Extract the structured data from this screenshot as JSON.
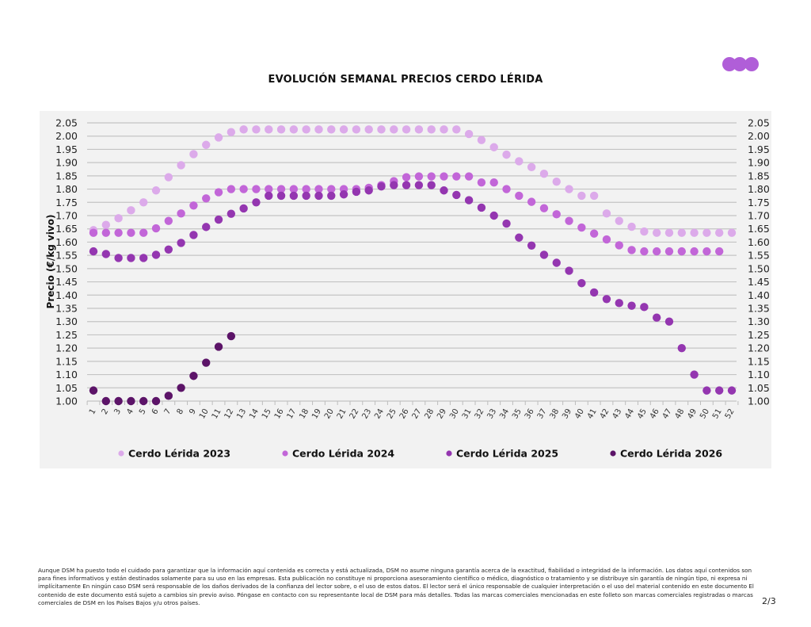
{
  "header": {
    "title": "EVOLUCIÓN SEMANAL PRECIOS CERDO LÉRIDA",
    "logo_icon": "three-dots-logo",
    "logo_color": "#b05ed8"
  },
  "chart_data": {
    "type": "scatter",
    "title": "EVOLUCIÓN SEMANAL PRECIOS CERDO LÉRIDA",
    "xlabel": "",
    "ylabel": "Precio (€/kg vivo)",
    "ylim": [
      1.0,
      2.05
    ],
    "yticks": [
      "1.00",
      "1.05",
      "1.10",
      "1.15",
      "1.20",
      "1.25",
      "1.30",
      "1.35",
      "1.40",
      "1.45",
      "1.50",
      "1.55",
      "1.60",
      "1.65",
      "1.70",
      "1.75",
      "1.80",
      "1.85",
      "1.90",
      "1.95",
      "2.00",
      "2.05"
    ],
    "secondary_y_axis": true,
    "grid": true,
    "legend_position": "bottom",
    "x": [
      1,
      2,
      3,
      4,
      5,
      6,
      7,
      8,
      9,
      10,
      11,
      12,
      13,
      14,
      15,
      16,
      17,
      18,
      19,
      20,
      21,
      22,
      23,
      24,
      25,
      26,
      27,
      28,
      29,
      30,
      31,
      32,
      33,
      34,
      35,
      36,
      37,
      38,
      39,
      40,
      41,
      42,
      43,
      44,
      45,
      46,
      47,
      48,
      49,
      50,
      51,
      52
    ],
    "series": [
      {
        "name": "Cerdo Lérida 2023",
        "color": "#dcaaea",
        "values": [
          1.645,
          1.665,
          1.69,
          1.72,
          1.75,
          1.795,
          1.845,
          1.89,
          1.932,
          1.967,
          1.995,
          2.015,
          2.025,
          2.025,
          2.025,
          2.025,
          2.025,
          2.025,
          2.025,
          2.025,
          2.025,
          2.025,
          2.025,
          2.025,
          2.025,
          2.025,
          2.025,
          2.025,
          2.025,
          2.025,
          2.008,
          1.985,
          1.958,
          1.93,
          1.905,
          1.883,
          1.858,
          1.828,
          1.8,
          1.775,
          1.775,
          1.708,
          1.68,
          1.658,
          1.64,
          1.635,
          1.635,
          1.635,
          1.635,
          1.635,
          1.635,
          1.635
        ]
      },
      {
        "name": "Cerdo Lérida 2024",
        "color": "#c266d8",
        "values": [
          1.635,
          1.635,
          1.635,
          1.635,
          1.635,
          1.652,
          1.68,
          1.708,
          1.738,
          1.765,
          1.788,
          1.8,
          1.8,
          1.8,
          1.8,
          1.8,
          1.8,
          1.8,
          1.8,
          1.8,
          1.8,
          1.8,
          1.805,
          1.815,
          1.83,
          1.845,
          1.848,
          1.848,
          1.848,
          1.848,
          1.848,
          1.825,
          1.825,
          1.8,
          1.775,
          1.752,
          1.728,
          1.705,
          1.68,
          1.655,
          1.632,
          1.61,
          1.588,
          1.57,
          1.565,
          1.565,
          1.565,
          1.565,
          1.565,
          1.565,
          1.565,
          null
        ]
      },
      {
        "name": "Cerdo Lérida 2025",
        "color": "#9436b0",
        "values": [
          1.565,
          1.555,
          1.54,
          1.54,
          1.54,
          1.552,
          1.572,
          1.597,
          1.627,
          1.657,
          1.685,
          1.707,
          1.727,
          1.75,
          1.775,
          1.775,
          1.775,
          1.775,
          1.775,
          1.775,
          1.78,
          1.79,
          1.795,
          1.81,
          1.815,
          1.815,
          1.815,
          1.815,
          1.795,
          1.778,
          1.758,
          1.73,
          1.7,
          1.67,
          1.617,
          1.587,
          1.552,
          1.522,
          1.492,
          1.445,
          1.41,
          1.385,
          1.37,
          1.36,
          1.355,
          1.315,
          1.3,
          1.2,
          1.1,
          1.04,
          1.04,
          1.04
        ]
      },
      {
        "name": "Cerdo Lérida 2026",
        "color": "#5c1468",
        "values": [
          1.04,
          1.0,
          1.0,
          1.0,
          1.0,
          1.0,
          1.02,
          1.05,
          1.095,
          1.145,
          1.205,
          1.245,
          null,
          null,
          null,
          null,
          null,
          null,
          null,
          null,
          null,
          null,
          null,
          null,
          null,
          null,
          null,
          null,
          null,
          null,
          null,
          null,
          null,
          null,
          null,
          null,
          null,
          null,
          null,
          null,
          null,
          null,
          null,
          null,
          null,
          null,
          null,
          null,
          null,
          null,
          null,
          null
        ]
      }
    ]
  },
  "footer": {
    "disclaimer": "Aunque DSM ha puesto todo el cuidado para garantizar que la información aquí contenida es correcta y está actualizada, DSM no asume ninguna garantía acerca de la exactitud, fiabilidad o integridad de la información. Los datos aquí contenidos son para fines informativos y están destinados solamente para su uso en las empresas. Esta publicación no constituye ni proporciona asesoramiento científico o médico, diagnóstico o tratamiento y se distribuye sin garantía de ningún tipo, ni expresa ni implícitamente En ningún caso DSM será responsable de los daños derivados de la confianza del lector sobre, o el uso de estos datos. El lector será el único responsable de cualquier interpretación o el uso del material contenido en este documento El contenido de este documento está sujeto a cambios sin previo aviso. Póngase en contacto con su representante local de DSM para más detalles. Todas las marcas comerciales mencionadas en este folleto son marcas comerciales registradas o marcas comerciales de DSM en los Países Bajos y/u otros países.",
    "page_number": "2/3"
  }
}
